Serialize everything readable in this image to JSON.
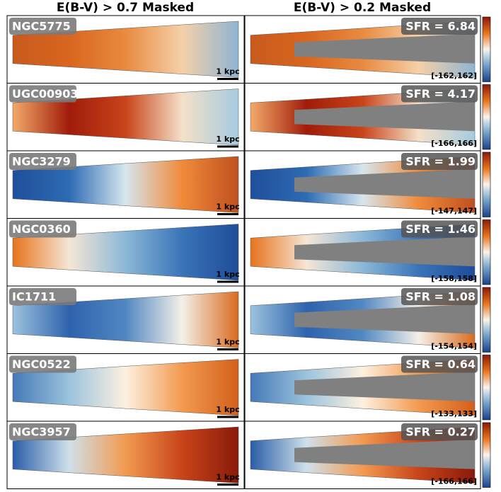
{
  "header": {
    "left_title": "E(B-V) > 0.7 Masked",
    "right_title": "E(B-V) > 0.2 Masked"
  },
  "rows": [
    {
      "name": "NGC5775",
      "sfr": "SFR = 6.84",
      "range": "[-162,162]",
      "scale": "1 kpc"
    },
    {
      "name": "UGC00903",
      "sfr": "SFR = 4.17",
      "range": "[-166,166]",
      "scale": "1 kpc"
    },
    {
      "name": "NGC3279",
      "sfr": "SFR = 1.99",
      "range": "[-147,147]",
      "scale": "1 kpc"
    },
    {
      "name": "NGC0360",
      "sfr": "SFR = 1.46",
      "range": "[-158,158]",
      "scale": "1 kpc"
    },
    {
      "name": "IC1711",
      "sfr": "SFR = 1.08",
      "range": "[-154,154]",
      "scale": "1 kpc"
    },
    {
      "name": "NGC0522",
      "sfr": "SFR = 0.64",
      "range": "[-133,133]",
      "scale": "1 kpc"
    },
    {
      "name": "NGC3957",
      "sfr": "SFR = 0.27",
      "range": "[-166,166]",
      "scale": "1 kpc"
    }
  ]
}
